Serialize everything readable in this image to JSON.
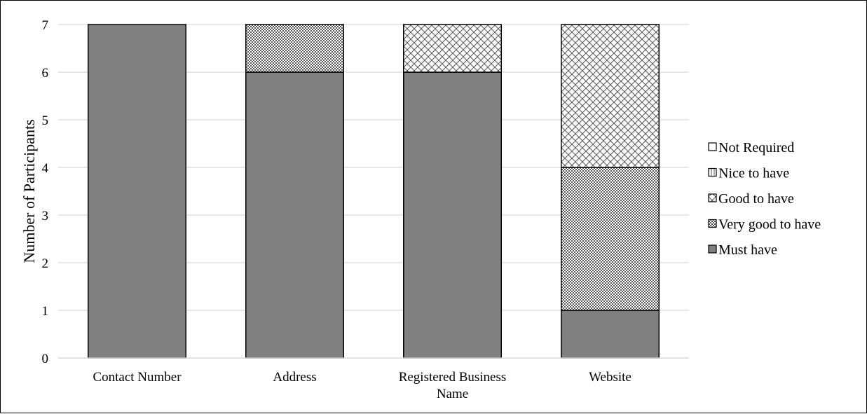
{
  "chart_data": {
    "type": "bar",
    "stacked": true,
    "title": "",
    "xlabel": "",
    "ylabel": "Number of Participants",
    "ylim": [
      0,
      7
    ],
    "yticks": [
      0,
      1,
      2,
      3,
      4,
      5,
      6,
      7
    ],
    "grid": true,
    "legend_position": "right",
    "categories": [
      [
        "Contact Number"
      ],
      [
        "Address"
      ],
      [
        "Registered Business",
        "Name"
      ],
      [
        "Website"
      ]
    ],
    "series": [
      {
        "name": "Must have",
        "values": [
          7,
          6,
          6,
          1
        ],
        "pattern": "solid"
      },
      {
        "name": "Very good to have",
        "values": [
          0,
          1,
          0,
          3
        ],
        "pattern": "dense-dots"
      },
      {
        "name": "Good to have",
        "values": [
          0,
          0,
          1,
          3
        ],
        "pattern": "cross-hatch"
      },
      {
        "name": "Nice to have",
        "values": [
          0,
          0,
          0,
          0
        ],
        "pattern": "vertical-lines"
      },
      {
        "name": "Not Required",
        "values": [
          0,
          0,
          0,
          0
        ],
        "pattern": "empty"
      }
    ],
    "legend_order": [
      "Not Required",
      "Nice to have",
      "Good to have",
      "Very good to have",
      "Must have"
    ],
    "colors": {
      "solid": "#808080",
      "grid": "#d9d9d9",
      "outline": "#000000"
    }
  }
}
